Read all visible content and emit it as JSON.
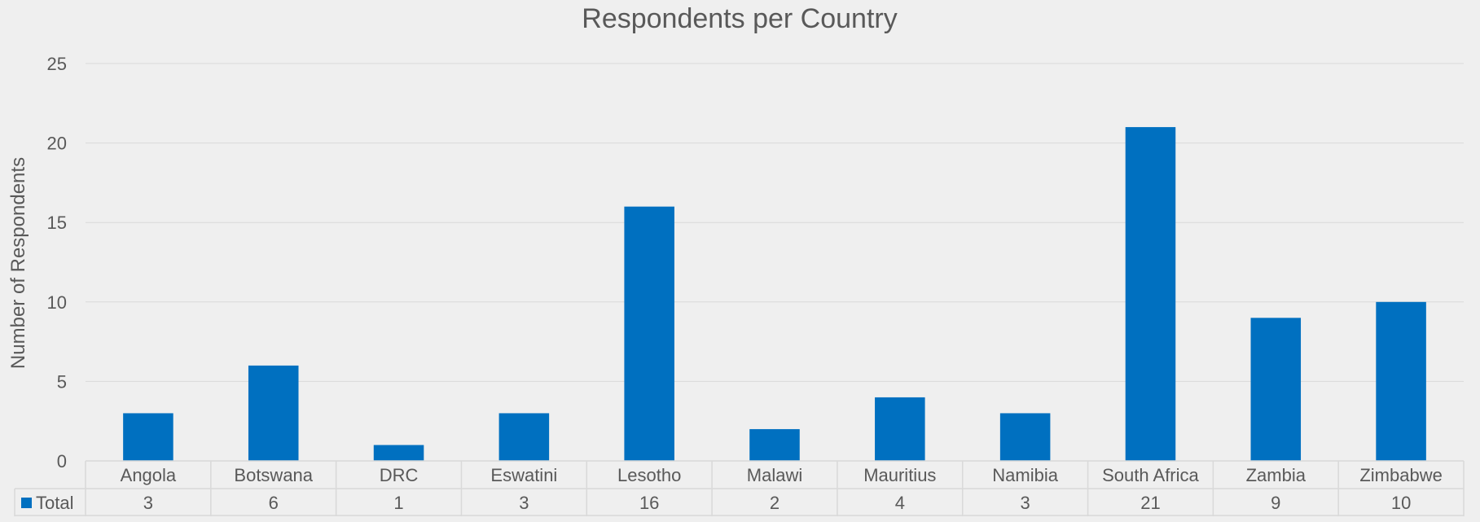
{
  "colors": {
    "background": "#efefef",
    "bar": "#0070c0",
    "gridline": "#d9d9d9",
    "text": "#595959",
    "title_text": "#595959",
    "table_border": "#d9d9d9"
  },
  "chart_data": {
    "type": "bar",
    "title": "Respondents per Country",
    "xlabel": "",
    "ylabel": "Number of Respondents",
    "ylim": [
      0,
      25
    ],
    "yticks": [
      0,
      5,
      10,
      15,
      20,
      25
    ],
    "grid": true,
    "legend": "data-table",
    "categories": [
      "Angola",
      "Botswana",
      "DRC",
      "Eswatini",
      "Lesotho",
      "Malawi",
      "Mauritius",
      "Namibia",
      "South Africa",
      "Zambia",
      "Zimbabwe"
    ],
    "series": [
      {
        "name": "Total",
        "values": [
          3,
          6,
          1,
          3,
          16,
          2,
          4,
          3,
          21,
          9,
          10
        ]
      }
    ]
  }
}
